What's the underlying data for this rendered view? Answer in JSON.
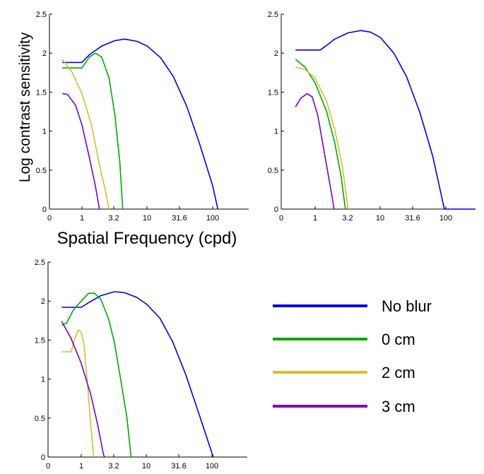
{
  "chart_data": [
    {
      "type": "line",
      "panel": "top-left",
      "xlabel": "Spatial Frequency  (cpd)",
      "ylabel": "Log contrast sensitivity",
      "x_ticks": [
        "0",
        "1",
        "3.2",
        "10",
        "31.6",
        "100"
      ],
      "y_ticks": [
        "0",
        "0.5",
        "1",
        "1.5",
        "2",
        "2.5"
      ],
      "ylim": [
        0,
        2.5
      ],
      "series": [
        {
          "name": "No blur",
          "color": "#0000dd",
          "points": [
            [
              0.5,
              1.88
            ],
            [
              1.0,
              1.88
            ],
            [
              1.3,
              1.98
            ],
            [
              2.0,
              2.09
            ],
            [
              3.2,
              2.16
            ],
            [
              4.5,
              2.18
            ],
            [
              7.0,
              2.15
            ],
            [
              10,
              2.09
            ],
            [
              16,
              1.94
            ],
            [
              25,
              1.7
            ],
            [
              40,
              1.32
            ],
            [
              63,
              0.84
            ],
            [
              100,
              0.3
            ],
            [
              120,
              0.0
            ]
          ]
        },
        {
          "name": "0 cm",
          "color": "#00aa00",
          "points": [
            [
              0.5,
              1.81
            ],
            [
              1.0,
              1.81
            ],
            [
              1.3,
              1.95
            ],
            [
              1.6,
              2.0
            ],
            [
              2.0,
              1.95
            ],
            [
              2.6,
              1.68
            ],
            [
              3.2,
              1.2
            ],
            [
              3.8,
              0.6
            ],
            [
              4.2,
              0.0
            ]
          ]
        },
        {
          "name": "2 cm",
          "color": "#d4c030",
          "points": [
            [
              0.5,
              1.92
            ],
            [
              0.7,
              1.76
            ],
            [
              1.0,
              1.48
            ],
            [
              1.4,
              1.08
            ],
            [
              1.8,
              0.62
            ],
            [
              2.3,
              0.22
            ],
            [
              2.6,
              0.0
            ]
          ]
        },
        {
          "name": "3 cm",
          "color": "#7a00cc",
          "points": [
            [
              0.5,
              1.48
            ],
            [
              0.6,
              1.47
            ],
            [
              0.8,
              1.33
            ],
            [
              1.0,
              1.08
            ],
            [
              1.3,
              0.66
            ],
            [
              1.6,
              0.3
            ],
            [
              1.85,
              0.0
            ]
          ]
        }
      ]
    },
    {
      "type": "line",
      "panel": "top-right",
      "x_ticks": [
        "0",
        "1",
        "3.2",
        "10",
        "31.6",
        "100"
      ],
      "y_ticks": [
        "0",
        "0.5",
        "1",
        "1.5",
        "2",
        "2.5"
      ],
      "ylim": [
        0,
        2.5
      ],
      "series": [
        {
          "name": "No blur",
          "color": "#0000dd",
          "points": [
            [
              0.5,
              2.04
            ],
            [
              1.2,
              2.04
            ],
            [
              1.5,
              2.1
            ],
            [
              2.0,
              2.18
            ],
            [
              3.2,
              2.26
            ],
            [
              5.0,
              2.29
            ],
            [
              7.0,
              2.27
            ],
            [
              10,
              2.2
            ],
            [
              16,
              2.0
            ],
            [
              25,
              1.7
            ],
            [
              40,
              1.24
            ],
            [
              63,
              0.68
            ],
            [
              95,
              0.0
            ],
            [
              300,
              0.0
            ]
          ]
        },
        {
          "name": "0 cm",
          "color": "#00aa00",
          "points": [
            [
              0.5,
              1.92
            ],
            [
              0.7,
              1.82
            ],
            [
              1.0,
              1.62
            ],
            [
              1.5,
              1.25
            ],
            [
              2.0,
              0.85
            ],
            [
              2.5,
              0.42
            ],
            [
              2.9,
              0.0
            ]
          ]
        },
        {
          "name": "2 cm",
          "color": "#d4c030",
          "points": [
            [
              0.5,
              1.82
            ],
            [
              0.7,
              1.79
            ],
            [
              1.0,
              1.68
            ],
            [
              1.5,
              1.38
            ],
            [
              2.0,
              1.02
            ],
            [
              2.6,
              0.56
            ],
            [
              3.2,
              0.0
            ]
          ]
        },
        {
          "name": "3 cm",
          "color": "#7a00cc",
          "points": [
            [
              0.5,
              1.31
            ],
            [
              0.6,
              1.42
            ],
            [
              0.75,
              1.48
            ],
            [
              0.9,
              1.44
            ],
            [
              1.1,
              1.2
            ],
            [
              1.4,
              0.7
            ],
            [
              1.8,
              0.18
            ],
            [
              1.95,
              0.0
            ]
          ]
        }
      ]
    },
    {
      "type": "line",
      "panel": "bottom-left",
      "x_ticks": [
        "0",
        "1",
        "3.2",
        "10",
        "31.6",
        "100"
      ],
      "y_ticks": [
        "0",
        "0.5",
        "1",
        "1.5",
        "2",
        "2.5"
      ],
      "ylim": [
        0,
        2.5
      ],
      "series": [
        {
          "name": "No blur",
          "color": "#0000dd",
          "points": [
            [
              0.5,
              1.92
            ],
            [
              1.0,
              1.92
            ],
            [
              1.3,
              1.98
            ],
            [
              2.0,
              2.07
            ],
            [
              3.2,
              2.12
            ],
            [
              4.5,
              2.11
            ],
            [
              7.0,
              2.05
            ],
            [
              10,
              1.96
            ],
            [
              16,
              1.78
            ],
            [
              25,
              1.48
            ],
            [
              40,
              1.05
            ],
            [
              63,
              0.56
            ],
            [
              100,
              0.05
            ],
            [
              105,
              0.0
            ]
          ]
        },
        {
          "name": "0 cm",
          "color": "#00aa00",
          "points": [
            [
              0.5,
              1.69
            ],
            [
              0.6,
              1.72
            ],
            [
              0.75,
              1.88
            ],
            [
              1.0,
              2.0
            ],
            [
              1.3,
              2.1
            ],
            [
              1.6,
              2.1
            ],
            [
              2.0,
              2.02
            ],
            [
              2.6,
              1.78
            ],
            [
              3.2,
              1.48
            ],
            [
              4.0,
              1.0
            ],
            [
              5.0,
              0.5
            ],
            [
              5.8,
              0.0
            ]
          ]
        },
        {
          "name": "2 cm",
          "color": "#d4c030",
          "points": [
            [
              0.5,
              1.35
            ],
            [
              0.7,
              1.35
            ],
            [
              0.8,
              1.52
            ],
            [
              0.9,
              1.63
            ],
            [
              1.0,
              1.6
            ],
            [
              1.1,
              1.45
            ],
            [
              1.25,
              0.92
            ],
            [
              1.4,
              0.4
            ],
            [
              1.55,
              0.0
            ]
          ]
        },
        {
          "name": "3 cm",
          "color": "#7a00cc",
          "points": [
            [
              0.5,
              1.74
            ],
            [
              0.7,
              1.52
            ],
            [
              1.0,
              1.2
            ],
            [
              1.4,
              0.8
            ],
            [
              1.8,
              0.4
            ],
            [
              2.2,
              0.02
            ],
            [
              2.3,
              0.0
            ]
          ]
        }
      ]
    }
  ],
  "legend": [
    {
      "label": "No blur",
      "color": "#0000dd"
    },
    {
      "label": "0 cm",
      "color": "#00aa00"
    },
    {
      "label": "2 cm",
      "color": "#d4c030"
    },
    {
      "label": "3 cm",
      "color": "#7a00cc"
    }
  ]
}
